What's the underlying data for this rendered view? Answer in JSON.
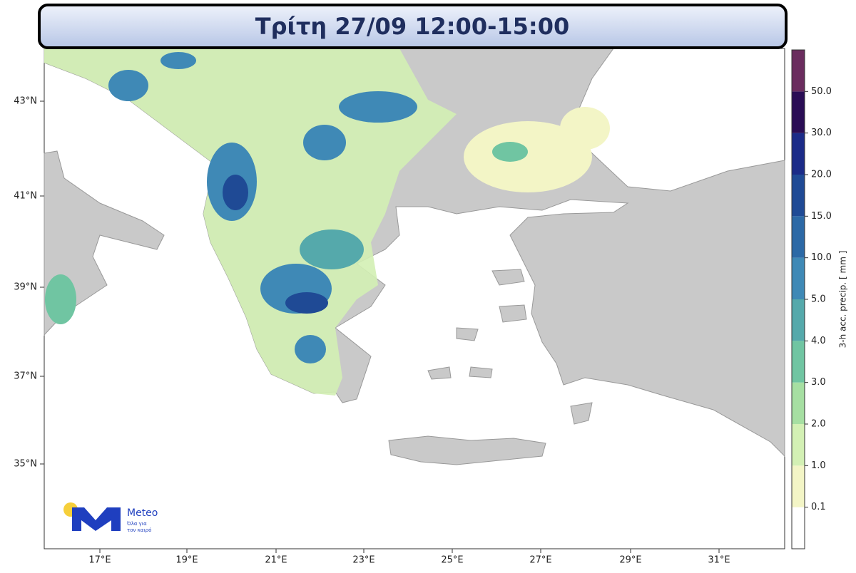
{
  "header": {
    "title": "Τρίτη 27/09 12:00-15:00"
  },
  "map": {
    "lat_labels": [
      "43°N",
      "41°N",
      "39°N",
      "37°N",
      "35°N"
    ],
    "lon_labels": [
      "17°E",
      "19°E",
      "21°E",
      "23°E",
      "25°E",
      "27°E",
      "29°E",
      "31°E"
    ]
  },
  "colorbar": {
    "title": "3-h acc. precip. [ mm ]",
    "labels": [
      "0.1",
      "1.0",
      "2.0",
      "3.0",
      "4.0",
      "5.0",
      "10.0",
      "15.0",
      "20.0",
      "30.0",
      "50.0"
    ],
    "colors": [
      "#ffffff",
      "#f3f5c6",
      "#d3f0b4",
      "#a6dfa2",
      "#70c5a2",
      "#55a9ab",
      "#3f89b6",
      "#2c69a6",
      "#1f4a95",
      "#1b2b88",
      "#2a0d55",
      "#6a2c5e"
    ]
  },
  "logo": {
    "name": "Meteo",
    "tagline": [
      "Όλα για",
      "τον καιρό"
    ]
  }
}
